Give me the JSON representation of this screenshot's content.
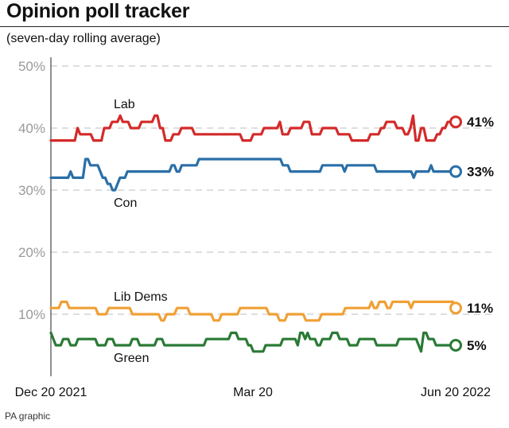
{
  "title": "Opinion poll tracker",
  "subtitle": "(seven-day rolling average)",
  "source": "PA graphic",
  "chart_data": {
    "type": "line",
    "title": "Opinion poll tracker",
    "subtitle": "(seven-day rolling average)",
    "xlabel": "",
    "ylabel": "",
    "ylim": [
      0,
      50
    ],
    "y_ticks": [
      "50%",
      "40%",
      "30%",
      "20%",
      "10%"
    ],
    "x_ticks": [
      "Dec 20 2021",
      "Mar 20",
      "Jun 20 2022"
    ],
    "x_range": [
      "2021-12-20",
      "2022-06-20"
    ],
    "grid": true,
    "legend": "none",
    "series": [
      {
        "name": "Lab",
        "color": "#d42a2a",
        "end_label": "41%",
        "values": [
          38,
          38,
          38,
          38,
          38,
          38,
          38,
          38,
          38,
          38,
          40,
          39,
          39,
          39,
          39,
          39,
          38,
          38,
          38,
          38,
          40,
          40,
          40,
          41,
          41,
          41,
          42,
          41,
          41,
          41,
          40,
          40,
          40,
          40,
          41,
          41,
          41,
          41,
          41,
          42,
          42,
          40,
          40,
          38,
          38,
          38,
          39,
          39,
          39,
          40,
          40,
          40,
          40,
          40,
          39,
          39,
          39,
          39,
          39,
          39,
          39,
          39,
          39,
          39,
          39,
          39,
          39,
          39,
          39,
          39,
          39,
          39,
          38,
          38,
          38,
          38,
          39,
          39,
          39,
          39,
          40,
          40,
          40,
          40,
          40,
          40,
          41,
          39,
          39,
          39,
          40,
          40,
          40,
          40,
          40,
          41,
          41,
          41,
          39,
          39,
          39,
          39,
          40,
          40,
          40,
          40,
          40,
          40,
          39,
          39,
          39,
          39,
          39,
          38,
          38,
          38,
          38,
          38,
          38,
          38,
          39,
          39,
          39,
          39,
          40,
          40,
          41,
          41,
          41,
          41,
          40,
          40,
          40,
          39,
          39,
          40,
          42,
          38,
          38,
          40,
          40,
          38,
          38,
          38,
          38,
          39,
          39,
          40,
          40,
          41,
          41,
          41,
          41
        ]
      },
      {
        "name": "Con",
        "color": "#2a6fa8",
        "end_label": "33%",
        "values": [
          32,
          32,
          32,
          32,
          32,
          32,
          32,
          32,
          33,
          32,
          32,
          32,
          32,
          32,
          35,
          35,
          34,
          34,
          34,
          34,
          33,
          32,
          32,
          31,
          31,
          30,
          30,
          31,
          32,
          32,
          32,
          33,
          33,
          33,
          33,
          33,
          33,
          33,
          33,
          33,
          33,
          33,
          33,
          33,
          33,
          33,
          33,
          33,
          33,
          34,
          34,
          33,
          33,
          34,
          34,
          34,
          34,
          34,
          34,
          34,
          35,
          35,
          35,
          35,
          35,
          35,
          35,
          35,
          35,
          35,
          35,
          35,
          35,
          35,
          35,
          35,
          35,
          35,
          35,
          35,
          35,
          35,
          35,
          35,
          35,
          35,
          35,
          35,
          35,
          35,
          35,
          35,
          35,
          35,
          34,
          34,
          34,
          33,
          33,
          33,
          33,
          33,
          33,
          33,
          33,
          33,
          33,
          33,
          33,
          33,
          34,
          34,
          34,
          34,
          34,
          34,
          34,
          34,
          34,
          33,
          34,
          34,
          34,
          34,
          34,
          34,
          34,
          34,
          34,
          34,
          34,
          34,
          33,
          33,
          33,
          33,
          33,
          33,
          33,
          33,
          33,
          33,
          33,
          33,
          33,
          33,
          33,
          32,
          33,
          33,
          33,
          33,
          33,
          33,
          34,
          33,
          33,
          33,
          33,
          33,
          33,
          33,
          33,
          33,
          33
        ]
      },
      {
        "name": "Lib Dems",
        "color": "#f0a035",
        "end_label": "11%",
        "values": [
          11,
          11,
          11,
          11,
          12,
          12,
          12,
          11,
          11,
          11,
          11,
          11,
          11,
          11,
          11,
          11,
          11,
          11,
          10,
          10,
          10,
          10,
          11,
          11,
          11,
          11,
          11,
          11,
          11,
          11,
          11,
          10,
          10,
          10,
          10,
          10,
          10,
          10,
          10,
          10,
          10,
          10,
          9,
          9,
          10,
          10,
          10,
          10,
          11,
          11,
          11,
          11,
          11,
          10,
          10,
          10,
          10,
          10,
          10,
          10,
          10,
          10,
          9,
          9,
          9,
          10,
          10,
          10,
          10,
          10,
          10,
          10,
          11,
          11,
          11,
          11,
          11,
          11,
          11,
          11,
          11,
          11,
          11,
          10,
          10,
          10,
          10,
          9,
          9,
          9,
          10,
          10,
          10,
          10,
          10,
          10,
          10,
          9,
          9,
          9,
          9,
          9,
          9,
          10,
          10,
          10,
          10,
          10,
          10,
          10,
          10,
          10,
          11,
          11,
          11,
          11,
          11,
          11,
          11,
          11,
          11,
          11,
          12,
          11,
          11,
          12,
          12,
          12,
          11,
          11,
          12,
          12,
          12,
          12,
          12,
          12,
          12,
          11,
          12,
          12,
          12,
          12,
          12,
          12,
          12,
          12,
          12,
          12,
          12,
          12,
          12,
          12,
          12,
          12,
          11
        ]
      },
      {
        "name": "Green",
        "color": "#2a7a35",
        "end_label": "5%",
        "values": [
          7,
          6,
          5,
          5,
          5,
          6,
          6,
          6,
          5,
          5,
          5,
          6,
          6,
          6,
          6,
          6,
          6,
          6,
          6,
          5,
          5,
          5,
          5,
          6,
          6,
          6,
          5,
          5,
          5,
          5,
          5,
          5,
          5,
          6,
          6,
          6,
          5,
          5,
          5,
          5,
          5,
          5,
          5,
          6,
          6,
          6,
          5,
          5,
          5,
          5,
          5,
          5,
          5,
          5,
          5,
          5,
          5,
          5,
          5,
          5,
          5,
          5,
          5,
          6,
          6,
          6,
          6,
          6,
          6,
          6,
          6,
          6,
          6,
          7,
          7,
          7,
          6,
          6,
          6,
          6,
          5,
          5,
          4,
          4,
          4,
          4,
          4,
          5,
          5,
          5,
          5,
          5,
          5,
          5,
          6,
          6,
          6,
          6,
          6,
          6,
          5,
          7,
          7,
          6,
          7,
          6,
          6,
          6,
          5,
          5,
          6,
          6,
          6,
          6,
          7,
          7,
          7,
          6,
          6,
          6,
          6,
          5,
          5,
          5,
          5,
          6,
          6,
          6,
          6,
          6,
          6,
          6,
          5,
          5,
          5,
          5,
          5,
          5,
          5,
          5,
          5,
          6,
          6,
          6,
          6,
          6,
          6,
          6,
          6,
          5,
          4,
          7,
          7,
          6,
          6,
          6,
          5,
          5,
          5,
          5,
          5,
          5,
          5,
          5,
          5
        ]
      }
    ],
    "line_labels": [
      "Lab",
      "Con",
      "Lib Dems",
      "Green"
    ]
  }
}
